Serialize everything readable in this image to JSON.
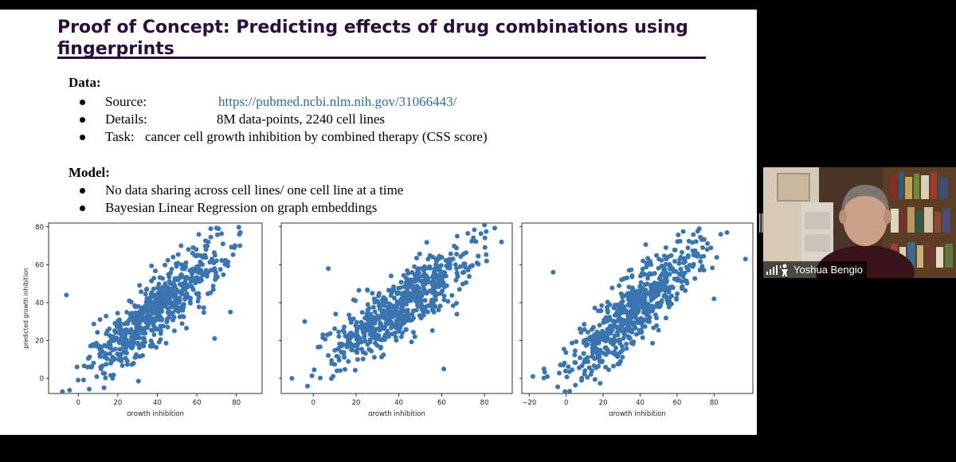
{
  "slide": {
    "title": "Proof of Concept: Predicting effects of drug combinations using fingerprints",
    "data_heading": "Data:",
    "data_items": [
      {
        "label": "Source:",
        "value": "https://pubmed.ncbi.nlm.nih.gov/31066443/",
        "is_link": true
      },
      {
        "label": "Details:",
        "value": "8M data-points, 2240 cell lines"
      },
      {
        "label": "Task:",
        "value": "cancer cell growth inhibition by combined therapy (CSS score)"
      }
    ],
    "model_heading": "Model:",
    "model_items": [
      "No data sharing across cell lines/ one cell line at a time",
      "Bayesian Linear Regression on graph embeddings"
    ]
  },
  "video": {
    "participant_name": "Yoshua Bengio",
    "icons": [
      "signal-bars-icon",
      "raised-hand-icon"
    ]
  },
  "colors": {
    "title": "#2a0f3a",
    "link": "#2b6ca3",
    "scatter_point": "#3a75b0"
  },
  "chart_data": [
    {
      "type": "scatter",
      "xlabel": "growth inhibition",
      "ylabel": "predicted growth inhibition",
      "xticks": [
        0,
        20,
        40,
        60,
        80
      ],
      "yticks": [
        0,
        20,
        40,
        60,
        80
      ],
      "xlim": [
        -15,
        93
      ],
      "ylim": [
        -8,
        82
      ],
      "trend": {
        "slope": 0.85,
        "intercept": 3,
        "spread": 9
      },
      "x_range": [
        -10,
        90
      ],
      "n_points": 640,
      "points": [
        [
          67,
          79
        ],
        [
          71,
          79
        ],
        [
          61,
          76
        ],
        [
          82,
          77
        ],
        [
          52,
          70
        ],
        [
          48,
          64
        ],
        [
          77,
          35
        ],
        [
          -6,
          44
        ],
        [
          69,
          21
        ],
        [
          28,
          8
        ],
        [
          13,
          -5
        ],
        [
          -8,
          -7
        ]
      ]
    },
    {
      "type": "scatter",
      "xlabel": "growth inhibition",
      "ylabel": "",
      "xticks": [
        0,
        20,
        40,
        60,
        80
      ],
      "yticks": [],
      "xlim": [
        -15,
        93
      ],
      "ylim": [
        -8,
        82
      ],
      "trend": {
        "slope": 0.8,
        "intercept": 6,
        "spread": 8
      },
      "x_range": [
        -8,
        90
      ],
      "n_points": 640,
      "points": [
        [
          80,
          81
        ],
        [
          88,
          72
        ],
        [
          7,
          58
        ],
        [
          62,
          54
        ],
        [
          81,
          62
        ],
        [
          -4,
          30
        ],
        [
          61,
          5
        ],
        [
          -10,
          0
        ]
      ]
    },
    {
      "type": "scatter",
      "xlabel": "growth inhibition",
      "ylabel": "",
      "xticks": [
        -20,
        0,
        20,
        40,
        60,
        80
      ],
      "yticks": [],
      "xlim": [
        -24,
        101
      ],
      "ylim": [
        -8,
        82
      ],
      "trend": {
        "slope": 0.82,
        "intercept": 6,
        "spread": 9
      },
      "x_range": [
        -18,
        92
      ],
      "n_points": 640,
      "points": [
        [
          72,
          79
        ],
        [
          87,
          77
        ],
        [
          97,
          63
        ],
        [
          -7,
          56
        ],
        [
          80,
          42
        ],
        [
          -12,
          5
        ],
        [
          -18,
          1
        ],
        [
          30,
          52
        ]
      ]
    }
  ]
}
